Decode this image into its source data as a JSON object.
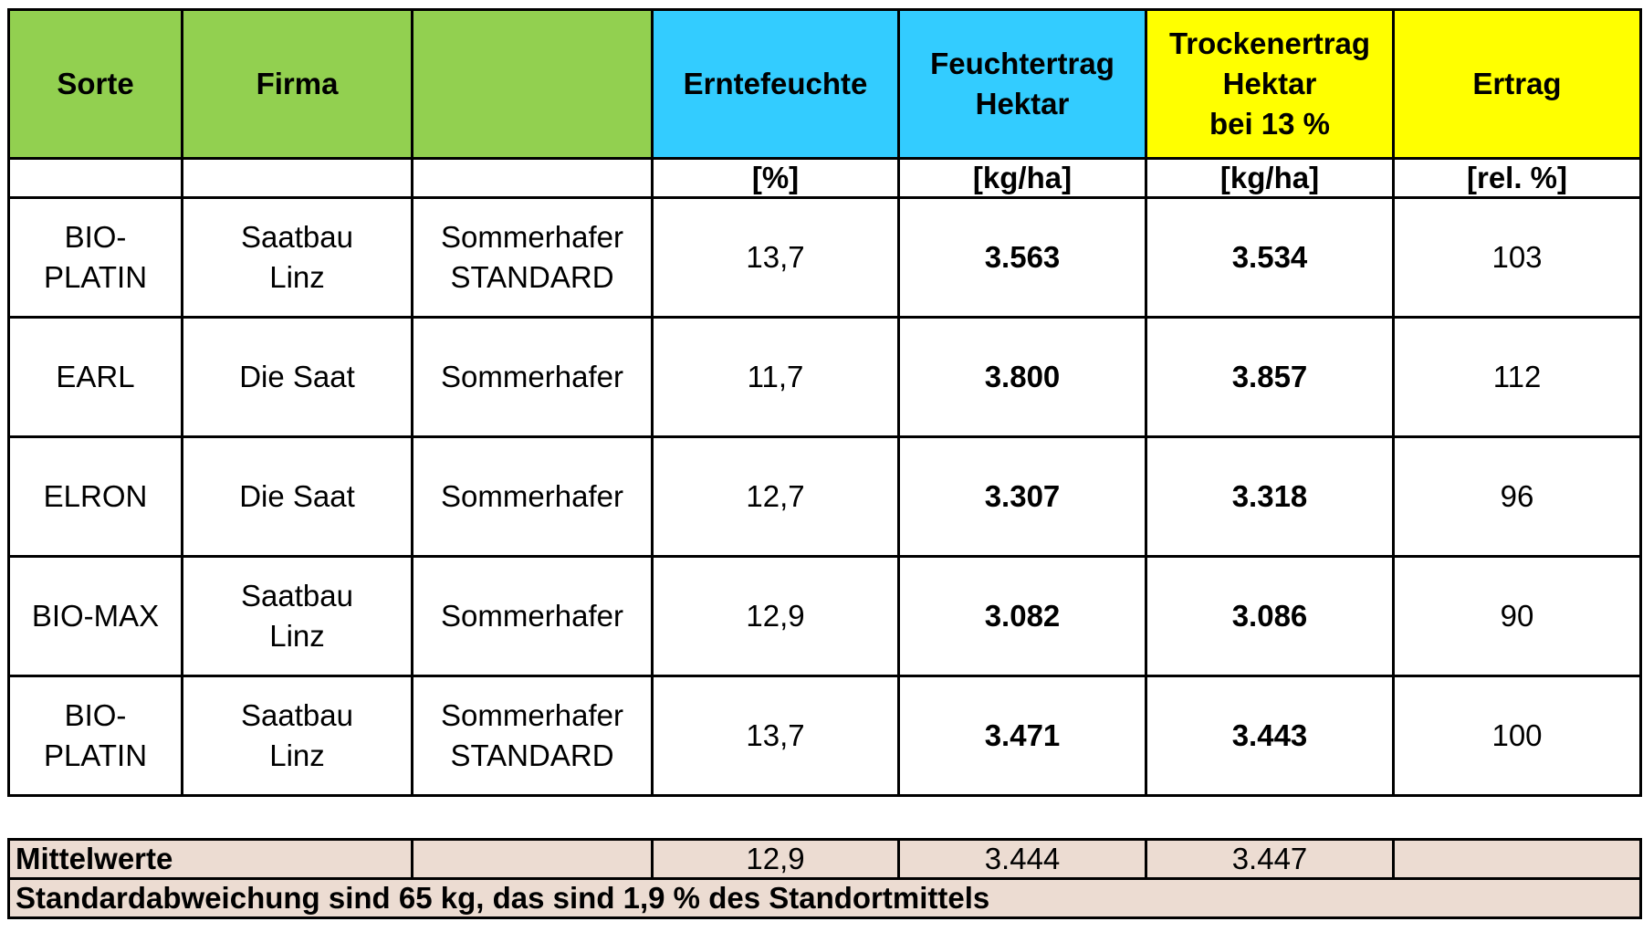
{
  "header": {
    "sorte": "Sorte",
    "firma": "Firma",
    "blank": "",
    "erntefeuchte": "Erntefeuchte",
    "feuchtertrag_l1": "Feuchtertrag",
    "feuchtertrag_l2": "Hektar",
    "trockenertrag_l1": "Trockenertrag",
    "trockenertrag_l2": "Hektar",
    "trockenertrag_l3": "bei 13 %",
    "ertrag": "Ertrag"
  },
  "units": {
    "erntefeuchte": "[%]",
    "feuchtertrag": "[kg/ha]",
    "trockenertrag": "[kg/ha]",
    "ertrag": "[rel. %]"
  },
  "rows": [
    {
      "sorte_l1": "BIO-",
      "sorte_l2": "PLATIN",
      "firma_l1": "Saatbau",
      "firma_l2": "Linz",
      "typ_l1": "Sommerhafer",
      "typ_l2": "STANDARD",
      "erntefeuchte": "13,7",
      "feuchtertrag": "3.563",
      "trockenertrag": "3.534",
      "ertrag": "103"
    },
    {
      "sorte_l1": "EARL",
      "sorte_l2": "",
      "firma_l1": "Die Saat",
      "firma_l2": "",
      "typ_l1": "Sommerhafer",
      "typ_l2": "",
      "erntefeuchte": "11,7",
      "feuchtertrag": "3.800",
      "trockenertrag": "3.857",
      "ertrag": "112"
    },
    {
      "sorte_l1": "ELRON",
      "sorte_l2": "",
      "firma_l1": "Die Saat",
      "firma_l2": "",
      "typ_l1": "Sommerhafer",
      "typ_l2": "",
      "erntefeuchte": "12,7",
      "feuchtertrag": "3.307",
      "trockenertrag": "3.318",
      "ertrag": "96"
    },
    {
      "sorte_l1": "BIO-MAX",
      "sorte_l2": "",
      "firma_l1": "Saatbau",
      "firma_l2": "Linz",
      "typ_l1": "Sommerhafer",
      "typ_l2": "",
      "erntefeuchte": "12,9",
      "feuchtertrag": "3.082",
      "trockenertrag": "3.086",
      "ertrag": "90"
    },
    {
      "sorte_l1": "BIO-",
      "sorte_l2": "PLATIN",
      "firma_l1": "Saatbau",
      "firma_l2": "Linz",
      "typ_l1": "Sommerhafer",
      "typ_l2": "STANDARD",
      "erntefeuchte": "13,7",
      "feuchtertrag": "3.471",
      "trockenertrag": "3.443",
      "ertrag": "100"
    }
  ],
  "summary": {
    "label": "Mittelwerte",
    "erntefeuchte": "12,9",
    "feuchtertrag": "3.444",
    "trockenertrag": "3.447",
    "note": "Standardabweichung sind 65 kg, das sind 1,9 % des Standortmittels"
  },
  "colors": {
    "green": "#92d050",
    "cyan": "#33ccff",
    "yellow": "#ffff00",
    "summary_bg": "#ecdcd2"
  }
}
